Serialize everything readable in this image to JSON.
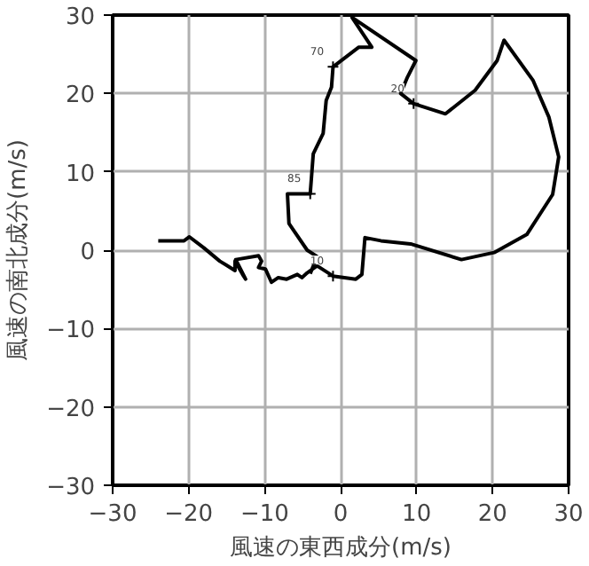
{
  "chart_data": {
    "type": "line",
    "xlabel": "風速の東西成分(m/s)",
    "ylabel": "風速の南北成分(m/s)",
    "series": [
      {
        "color": "#000000",
        "x": [
          -24,
          -20.6,
          -19.9,
          -18,
          -15.9,
          -13.9,
          -13.9,
          -12.9,
          -12.5,
          -13.8,
          -10.8,
          -10.4,
          -10.8,
          -9.9,
          -9.1,
          -8.2,
          -7.1,
          -5.7,
          -5.1,
          -4.4,
          -3.1,
          -1,
          2,
          2.8,
          3.2,
          5.3,
          9.2,
          15.9,
          20.2,
          24.5,
          27.9,
          28.7,
          27.4,
          25.3,
          21.5,
          20.6,
          17.7,
          13.8,
          9.6,
          7.9,
          8.8,
          9.9,
          1.5,
          4.1,
          2.4,
          -1,
          -1.2,
          -1.9,
          -2.3,
          -3.6,
          -4,
          -7,
          -6.8,
          -4.4,
          -3.1,
          -4
        ],
        "values": [
          1.2,
          1.2,
          1.7,
          0.3,
          -1.4,
          -2.6,
          -1.4,
          -3.1,
          -3.7,
          -1.2,
          -0.7,
          -1.4,
          -2.2,
          -2.4,
          -4.1,
          -3.5,
          -3.7,
          -3.1,
          -3.5,
          -2.9,
          -2,
          -3.3,
          -3.7,
          -3.1,
          1.6,
          1.2,
          0.8,
          -1.2,
          -0.3,
          2,
          7.1,
          11.9,
          17,
          21.7,
          26.8,
          24.2,
          20.4,
          17.4,
          18.7,
          20,
          22.1,
          24.2,
          29.7,
          25.9,
          25.9,
          23.4,
          20.8,
          19.1,
          14.9,
          12.3,
          7.2,
          7.2,
          3.4,
          0,
          -0.8,
          -3
        ]
      }
    ],
    "annotations": [
      {
        "text": "70",
        "x": -1,
        "y": 23.4
      },
      {
        "text": "20",
        "x": 9.6,
        "y": 18.7
      },
      {
        "text": "85",
        "x": -4,
        "y": 7.2
      },
      {
        "text": "10",
        "x": -1,
        "y": -3.3
      }
    ],
    "xlim": [
      -30,
      30
    ],
    "ylim": [
      -30,
      30
    ],
    "xticks": [
      -30,
      -20,
      -10,
      0,
      10,
      20,
      30
    ],
    "yticks": [
      -30,
      -20,
      -10,
      0,
      10,
      20,
      30
    ],
    "grid": true,
    "marker": "none",
    "line_style": "solid"
  }
}
